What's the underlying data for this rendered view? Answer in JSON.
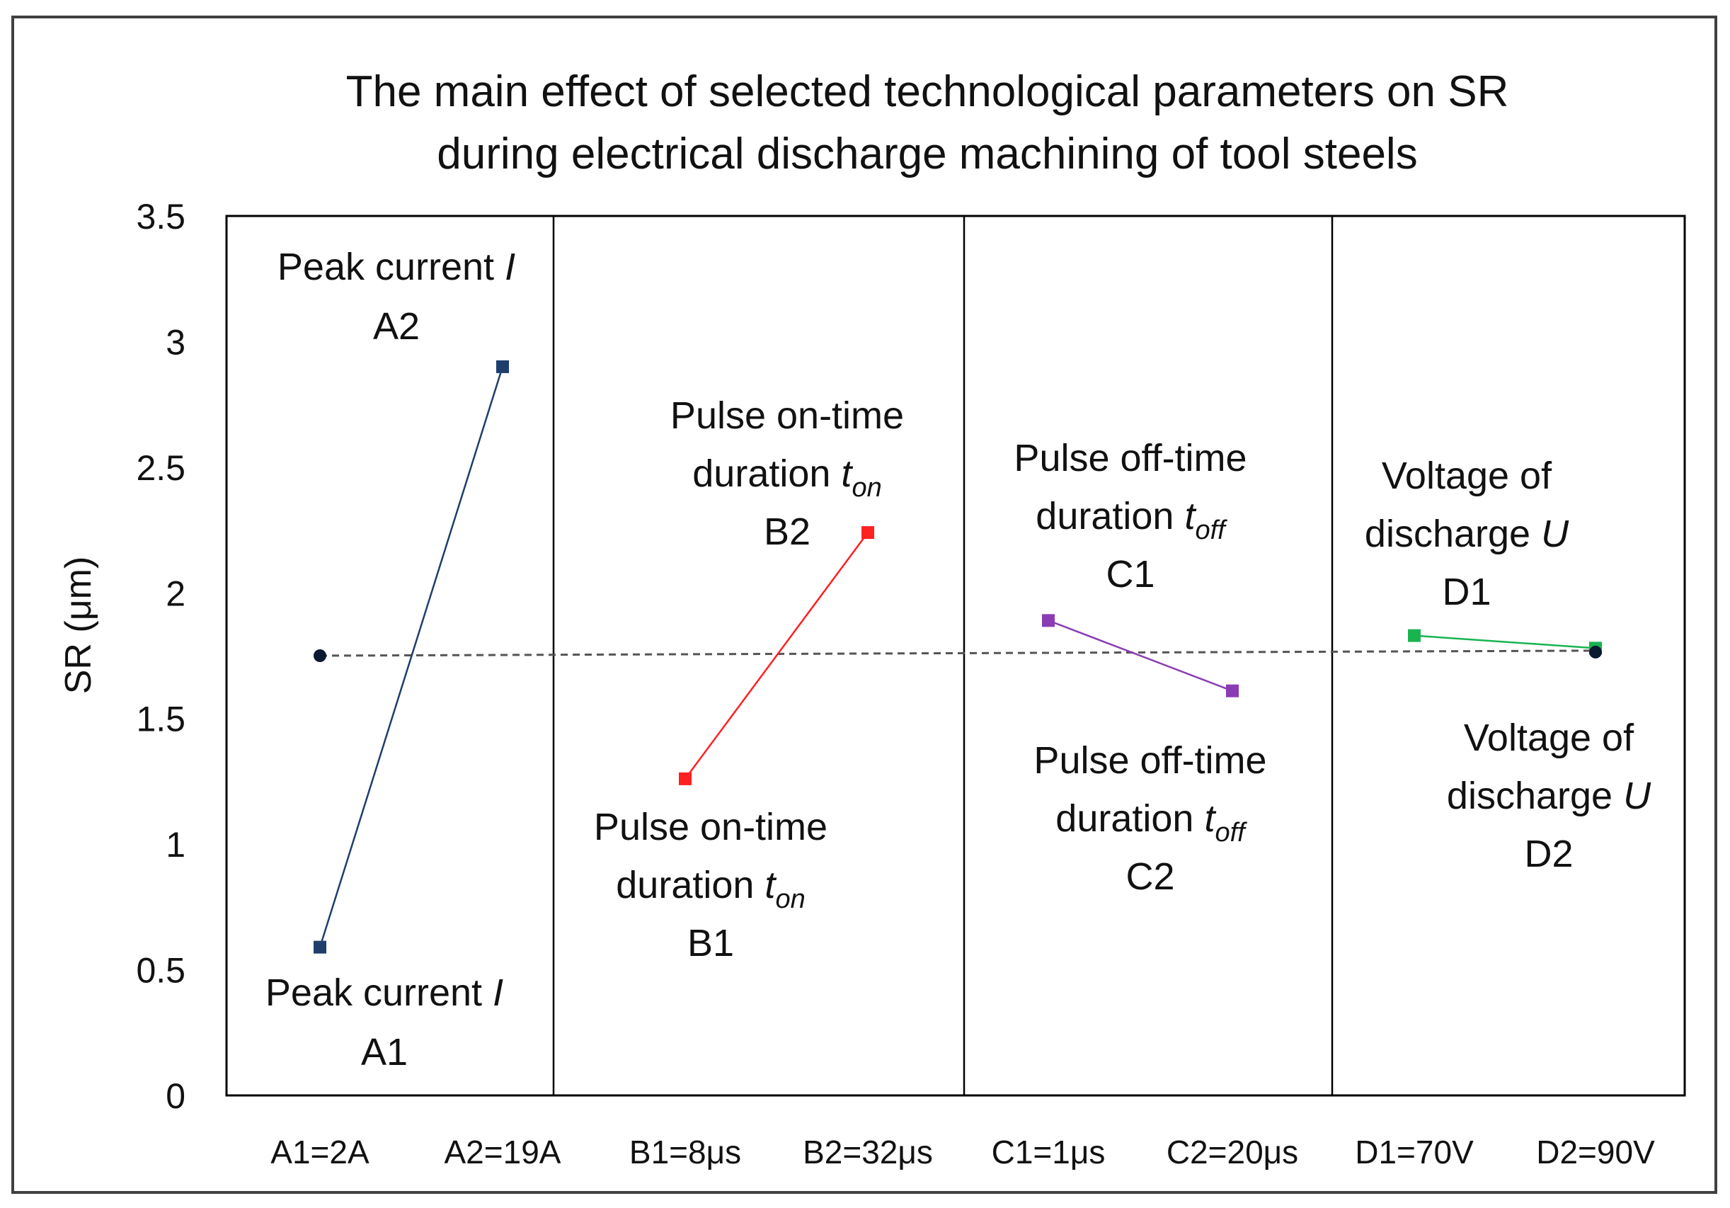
{
  "chart_data": {
    "type": "line",
    "title": [
      "The main effect of selected technological parameters on SR",
      "during electrical discharge machining of tool steels"
    ],
    "ylabel": "SR (μm)",
    "xlabel": "",
    "ylim": [
      0,
      3.5
    ],
    "yticks": [
      "0",
      "0.5",
      "1",
      "1.5",
      "2",
      "2.5",
      "3",
      "3.5"
    ],
    "ytick_values": [
      0,
      0.5,
      1,
      1.5,
      2,
      2.5,
      3,
      3.5
    ],
    "categories": [
      "A1=2A",
      "A2=19A",
      "B1=8μs",
      "B2=32μs",
      "C1=1μs",
      "C2=20μs",
      "D1=70V",
      "D2=90V"
    ],
    "mean_line": {
      "value": 1.75,
      "style": "dashed"
    },
    "series": [
      {
        "name": "Peak current I",
        "color": "#1f3e6b",
        "points": [
          {
            "category": "A1=2A",
            "value": 0.59
          },
          {
            "category": "A2=19A",
            "value": 2.9
          }
        ]
      },
      {
        "name": "Pulse on-time duration t_on",
        "color": "#ff2020",
        "points": [
          {
            "category": "B1=8μs",
            "value": 1.26
          },
          {
            "category": "B2=32μs",
            "value": 2.24
          }
        ]
      },
      {
        "name": "Pulse off-time duration t_off",
        "color": "#8a3cb4",
        "points": [
          {
            "category": "C1=1μs",
            "value": 1.89
          },
          {
            "category": "C2=20μs",
            "value": 1.61
          }
        ]
      },
      {
        "name": "Voltage of discharge U",
        "color": "#19b450",
        "points": [
          {
            "category": "D1=70V",
            "value": 1.83
          },
          {
            "category": "D2=90V",
            "value": 1.78
          }
        ]
      }
    ],
    "annotations": [
      {
        "id": "a2",
        "lines": [
          "Peak current I",
          "A2"
        ],
        "italic": "I",
        "sub": ""
      },
      {
        "id": "a1",
        "lines": [
          "Peak current I",
          "A1"
        ],
        "italic": "I",
        "sub": ""
      },
      {
        "id": "b2",
        "lines": [
          "Pulse on-time",
          "duration t_on",
          "B2"
        ],
        "italic": "t",
        "sub": "on"
      },
      {
        "id": "b1",
        "lines": [
          "Pulse on-time",
          "duration t_on",
          "B1"
        ],
        "italic": "t",
        "sub": "on"
      },
      {
        "id": "c1",
        "lines": [
          "Pulse off-time",
          "duration t_off",
          "C1"
        ],
        "italic": "t",
        "sub": "off"
      },
      {
        "id": "c2",
        "lines": [
          "Pulse off-time",
          "duration t_off",
          "C2"
        ],
        "italic": "t",
        "sub": "off"
      },
      {
        "id": "d1",
        "lines": [
          "Voltage of",
          "discharge U",
          "D1"
        ],
        "italic": "U",
        "sub": ""
      },
      {
        "id": "d2",
        "lines": [
          "Voltage of",
          "discharge U",
          "D2"
        ],
        "italic": "U",
        "sub": ""
      }
    ]
  }
}
